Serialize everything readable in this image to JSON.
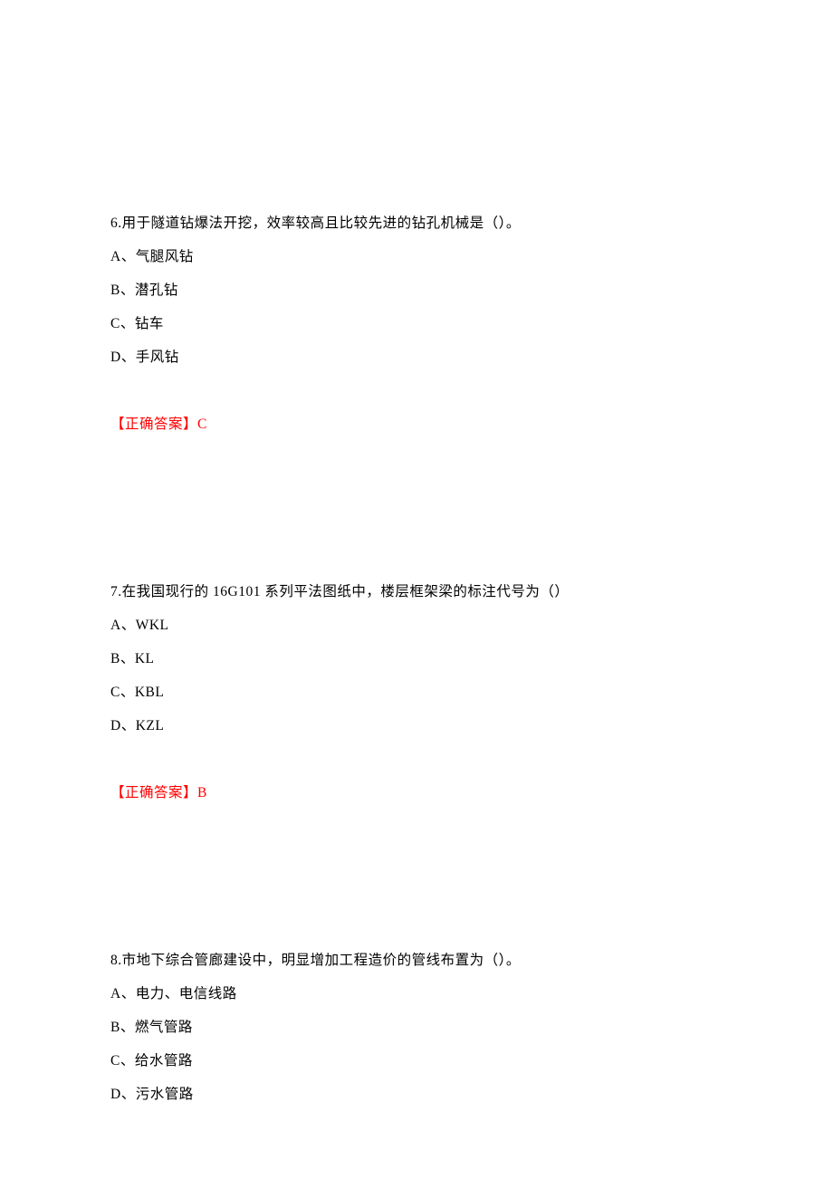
{
  "text_color": "#000000",
  "answer_color": "#ff0000",
  "background_color": "#ffffff",
  "font_size": 15.5,
  "line_height": 37,
  "questions": [
    {
      "number": "6",
      "stem": "6.用于隧道钻爆法开挖，效率较高且比较先进的钻孔机械是（）。",
      "options": {
        "A": "A、气腿风钻",
        "B": "B、潜孔钻",
        "C": "C、钻车",
        "D": "D、手风钻"
      },
      "answer_label": "【正确答案】",
      "answer_value": "C"
    },
    {
      "number": "7",
      "stem": "7.在我国现行的 16G101 系列平法图纸中，楼层框架梁的标注代号为（）",
      "options": {
        "A": "A、WKL",
        "B": "B、KL",
        "C": "C、KBL",
        "D": "D、KZL"
      },
      "answer_label": "【正确答案】",
      "answer_value": "B"
    },
    {
      "number": "8",
      "stem": "8.市地下综合管廊建设中，明显增加工程造价的管线布置为（）。",
      "options": {
        "A": "A、电力、电信线路",
        "B": "B、燃气管路",
        "C": "C、给水管路",
        "D": "D、污水管路"
      },
      "answer_label": "",
      "answer_value": ""
    }
  ]
}
